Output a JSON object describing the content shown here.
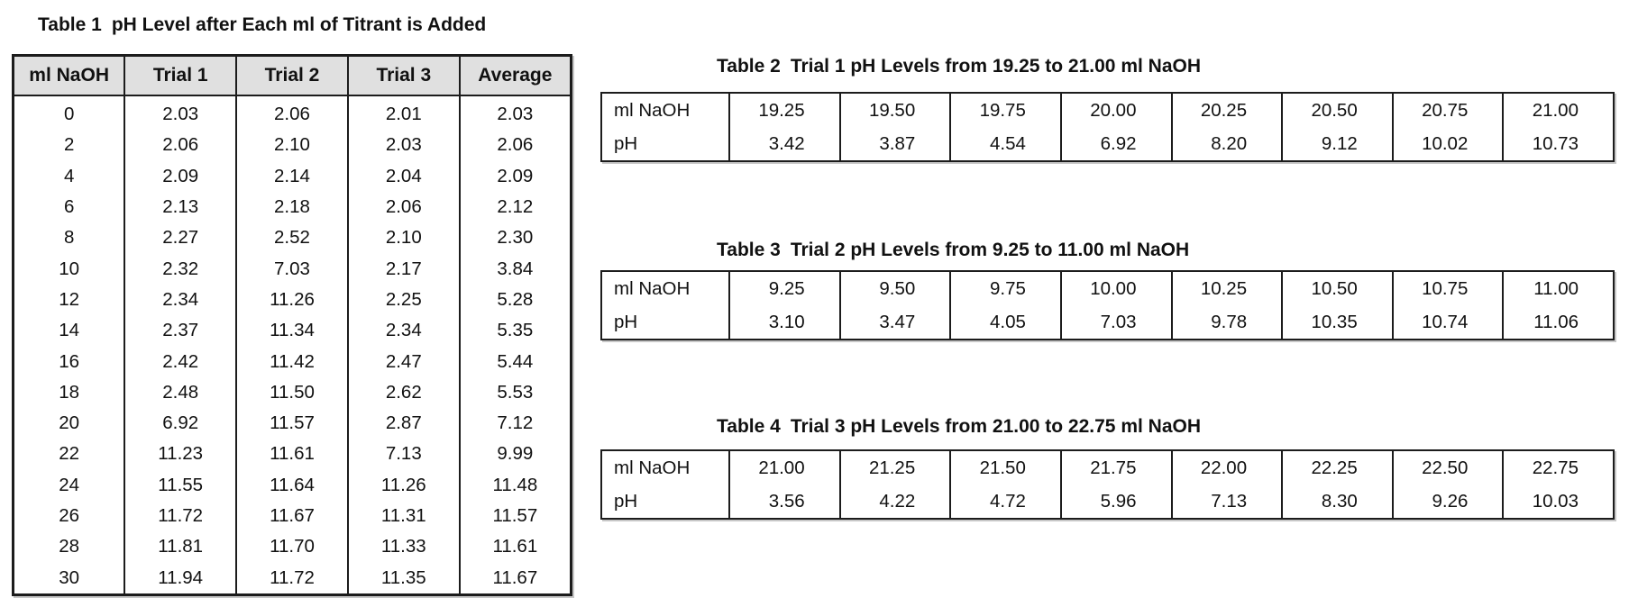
{
  "table1": {
    "title_label": "Table 1",
    "title_text": "pH Level after Each ml of Titrant is Added",
    "headers": [
      "ml NaOH",
      "Trial 1",
      "Trial 2",
      "Trial 3",
      "Average"
    ],
    "rows": [
      [
        "0",
        "2.03",
        "2.06",
        "2.01",
        "2.03"
      ],
      [
        "2",
        "2.06",
        "2.10",
        "2.03",
        "2.06"
      ],
      [
        "4",
        "2.09",
        "2.14",
        "2.04",
        "2.09"
      ],
      [
        "6",
        "2.13",
        "2.18",
        "2.06",
        "2.12"
      ],
      [
        "8",
        "2.27",
        "2.52",
        "2.10",
        "2.30"
      ],
      [
        "10",
        "2.32",
        "7.03",
        "2.17",
        "3.84"
      ],
      [
        "12",
        "2.34",
        "11.26",
        "2.25",
        "5.28"
      ],
      [
        "14",
        "2.37",
        "11.34",
        "2.34",
        "5.35"
      ],
      [
        "16",
        "2.42",
        "11.42",
        "2.47",
        "5.44"
      ],
      [
        "18",
        "2.48",
        "11.50",
        "2.62",
        "5.53"
      ],
      [
        "20",
        "6.92",
        "11.57",
        "2.87",
        "7.12"
      ],
      [
        "22",
        "11.23",
        "11.61",
        "7.13",
        "9.99"
      ],
      [
        "24",
        "11.55",
        "11.64",
        "11.26",
        "11.48"
      ],
      [
        "26",
        "11.72",
        "11.67",
        "11.31",
        "11.57"
      ],
      [
        "28",
        "11.81",
        "11.70",
        "11.33",
        "11.61"
      ],
      [
        "30",
        "11.94",
        "11.72",
        "11.35",
        "11.67"
      ]
    ]
  },
  "small_tables": [
    {
      "title_label": "Table 2",
      "title_text": "Trial 1 pH Levels from 19.25 to 21.00 ml NaOH",
      "row1_label": "ml NaOH",
      "row2_label": "pH",
      "ml_values": [
        "19.25",
        "19.50",
        "19.75",
        "20.00",
        "20.25",
        "20.50",
        "20.75",
        "21.00"
      ],
      "ph_values": [
        "3.42",
        "3.87",
        "4.54",
        "6.92",
        "8.20",
        "9.12",
        "10.02",
        "10.73"
      ]
    },
    {
      "title_label": "Table 3",
      "title_text": "Trial 2 pH Levels from 9.25 to 11.00 ml NaOH",
      "row1_label": "ml NaOH",
      "row2_label": "pH",
      "ml_values": [
        "9.25",
        "9.50",
        "9.75",
        "10.00",
        "10.25",
        "10.50",
        "10.75",
        "11.00"
      ],
      "ph_values": [
        "3.10",
        "3.47",
        "4.05",
        "7.03",
        "9.78",
        "10.35",
        "10.74",
        "11.06"
      ]
    },
    {
      "title_label": "Table 4",
      "title_text": "Trial 3 pH Levels from 21.00 to 22.75 ml NaOH",
      "row1_label": "ml NaOH",
      "row2_label": "pH",
      "ml_values": [
        "21.00",
        "21.25",
        "21.50",
        "21.75",
        "22.00",
        "22.25",
        "22.50",
        "22.75"
      ],
      "ph_values": [
        "3.56",
        "4.22",
        "4.72",
        "5.96",
        "7.13",
        "8.30",
        "9.26",
        "10.03"
      ]
    }
  ],
  "colors": {
    "header_bg": "#e0e0e0",
    "border": "#1c1c1c",
    "text": "#111111"
  }
}
